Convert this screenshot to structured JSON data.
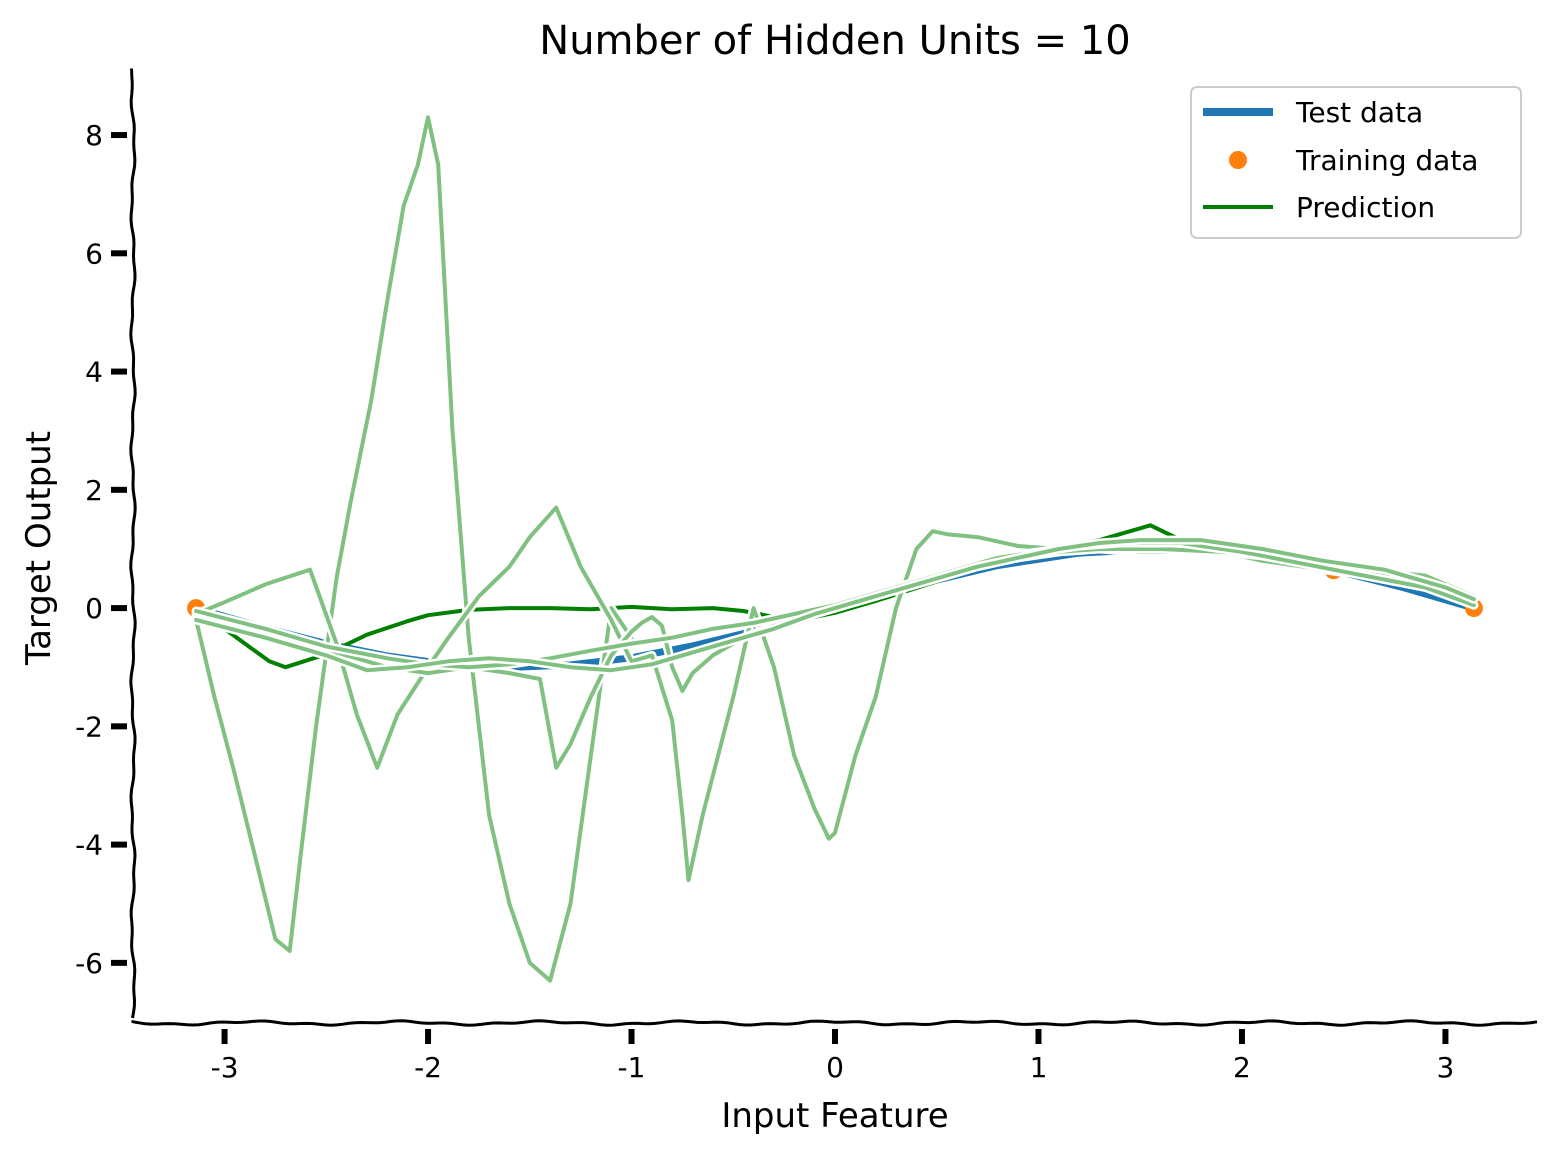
{
  "chart_data": {
    "type": "line",
    "title": "Number of Hidden Units = 10",
    "xlabel": "Input Feature",
    "ylabel": "Target Output",
    "xlim": [
      -3.45,
      3.45
    ],
    "ylim": [
      -7.0,
      9.1
    ],
    "x_ticks": [
      -3,
      -2,
      -1,
      0,
      1,
      2,
      3
    ],
    "x_tick_labels": [
      "-3",
      "-2",
      "-1",
      "0",
      "1",
      "2",
      "3"
    ],
    "y_ticks": [
      -6,
      -4,
      -2,
      0,
      2,
      4,
      6,
      8
    ],
    "y_tick_labels": [
      "-6",
      "-4",
      "-2",
      "0",
      "2",
      "4",
      "6",
      "8"
    ],
    "grid": false,
    "legend_position": "top-right",
    "colors": {
      "test": "#1f77b4",
      "training": "#ff7f0e",
      "prediction": "#008000",
      "samples": "#80c080"
    },
    "legend": [
      {
        "label": "Test data",
        "kind": "thick-line",
        "color": "#1f77b4"
      },
      {
        "label": "Training data",
        "kind": "marker",
        "color": "#ff7f0e"
      },
      {
        "label": "Prediction",
        "kind": "line",
        "color": "#008000"
      }
    ],
    "test_data": {
      "x": [
        -3.14,
        -2.8,
        -2.5,
        -2.2,
        -1.9,
        -1.57,
        -1.3,
        -1.0,
        -0.7,
        -0.4,
        0.0,
        0.4,
        0.8,
        1.2,
        1.57,
        1.9,
        2.2,
        2.5,
        2.8,
        3.14
      ],
      "y": [
        0.0,
        -0.34,
        -0.6,
        -0.81,
        -0.95,
        -1.0,
        -0.96,
        -0.84,
        -0.64,
        -0.39,
        0.0,
        0.39,
        0.72,
        0.93,
        1.0,
        0.95,
        0.81,
        0.6,
        0.34,
        0.0
      ]
    },
    "training_data": {
      "x": [
        -3.14,
        2.45,
        3.14
      ],
      "y": [
        0.0,
        0.64,
        0.0
      ]
    },
    "prediction": {
      "x": [
        -3.14,
        -2.9,
        -2.78,
        -2.7,
        -2.5,
        -2.3,
        -2.1,
        -2.0,
        -1.8,
        -1.6,
        -1.4,
        -1.2,
        -1.0,
        -0.8,
        -0.6,
        -0.45,
        -0.3,
        -0.2,
        0.0,
        0.2,
        0.5,
        0.8,
        1.0,
        1.3,
        1.55,
        1.7,
        2.0,
        2.3,
        2.6,
        2.9,
        3.14
      ],
      "y": [
        0.0,
        -0.6,
        -0.9,
        -1.0,
        -0.78,
        -0.45,
        -0.22,
        -0.12,
        -0.03,
        0.0,
        0.0,
        -0.02,
        0.02,
        -0.02,
        0.0,
        -0.05,
        -0.15,
        -0.22,
        -0.08,
        0.12,
        0.45,
        0.8,
        0.95,
        1.15,
        1.4,
        1.15,
        0.9,
        0.75,
        0.6,
        0.52,
        0.2
      ]
    },
    "sample_predictions": [
      {
        "x": [
          -3.14,
          -3.05,
          -2.95,
          -2.85,
          -2.75,
          -2.68,
          -2.62,
          -2.55,
          -2.45,
          -2.38,
          -2.28,
          -2.2,
          -2.12,
          -2.05,
          -2.0,
          -1.95,
          -1.88,
          -1.8,
          -1.7,
          -1.6,
          -1.5,
          -1.4,
          -1.3,
          -1.2,
          -1.1,
          -1.0
        ],
        "y": [
          -0.2,
          -1.5,
          -2.8,
          -4.2,
          -5.6,
          -5.8,
          -4.0,
          -2.0,
          0.5,
          1.8,
          3.5,
          5.2,
          6.8,
          7.5,
          8.3,
          7.5,
          3.0,
          -0.5,
          -3.5,
          -5.0,
          -6.0,
          -6.3,
          -5.0,
          -2.5,
          0.0,
          -0.5
        ]
      },
      {
        "x": [
          -3.14,
          -3.0,
          -2.8,
          -2.58,
          -2.45,
          -2.35,
          -2.25,
          -2.15,
          -2.0,
          -1.9,
          -1.75,
          -1.6,
          -1.5,
          -1.37,
          -1.25,
          -1.1,
          -1.0,
          -0.9,
          -0.8,
          -0.75,
          -0.72,
          -0.65,
          -0.5,
          -0.4,
          -0.3,
          -0.2,
          -0.1,
          -0.03,
          0.0,
          0.1,
          0.2,
          0.3,
          0.4,
          0.48,
          0.55,
          0.7,
          0.9,
          1.1,
          1.3,
          1.5,
          1.7,
          1.9,
          2.1,
          2.3,
          2.5,
          2.7,
          2.9,
          3.14
        ],
        "y": [
          -0.1,
          0.1,
          0.4,
          0.65,
          -0.6,
          -1.8,
          -2.7,
          -1.8,
          -1.0,
          -0.5,
          0.2,
          0.7,
          1.2,
          1.7,
          0.7,
          -0.2,
          -0.9,
          -0.8,
          -1.9,
          -3.5,
          -4.6,
          -3.5,
          -1.5,
          0.0,
          -1.0,
          -2.5,
          -3.4,
          -3.9,
          -3.8,
          -2.5,
          -1.5,
          0.0,
          1.0,
          1.3,
          1.25,
          1.2,
          1.05,
          1.0,
          1.0,
          0.95,
          0.95,
          0.95,
          0.8,
          0.7,
          0.6,
          0.62,
          0.55,
          0.2
        ]
      },
      {
        "x": [
          -3.14,
          -3.0,
          -2.7,
          -2.4,
          -2.2,
          -2.0,
          -1.8,
          -1.6,
          -1.45,
          -1.37,
          -1.3,
          -1.2,
          -1.1,
          -1.0,
          -0.95,
          -0.9,
          -0.85,
          -0.8,
          -0.75,
          -0.7,
          -0.6,
          -0.45,
          -0.3,
          -0.1,
          0.1,
          0.3,
          0.45,
          0.55,
          0.7,
          0.9,
          1.1,
          1.3,
          1.6,
          1.9,
          2.2,
          2.5,
          2.8,
          3.0,
          3.14
        ],
        "y": [
          -0.2,
          -0.3,
          -0.5,
          -0.8,
          -1.0,
          -1.1,
          -1.0,
          -1.1,
          -1.2,
          -2.7,
          -2.3,
          -1.5,
          -0.8,
          -0.4,
          -0.25,
          -0.15,
          -0.3,
          -1.0,
          -1.4,
          -1.1,
          -0.8,
          -0.5,
          -0.3,
          -0.1,
          0.1,
          0.3,
          0.5,
          0.6,
          0.75,
          0.85,
          0.95,
          1.0,
          1.0,
          0.95,
          0.85,
          0.65,
          0.5,
          0.35,
          0.05
        ]
      },
      {
        "x": [
          -3.14,
          -2.8,
          -2.5,
          -2.2,
          -2.0,
          -1.8,
          -1.6,
          -1.4,
          -1.2,
          -1.0,
          -0.8,
          -0.6,
          -0.4,
          -0.2,
          0.0,
          0.2,
          0.4,
          0.6,
          0.8,
          1.0,
          1.2,
          1.4,
          1.7,
          2.0,
          2.3,
          2.6,
          2.9,
          3.14
        ],
        "y": [
          -0.05,
          -0.35,
          -0.65,
          -0.85,
          -0.95,
          -1.0,
          -0.95,
          -0.85,
          -0.72,
          -0.6,
          -0.5,
          -0.35,
          -0.25,
          -0.1,
          0.05,
          0.25,
          0.45,
          0.65,
          0.85,
          0.95,
          1.05,
          1.1,
          1.1,
          0.95,
          0.75,
          0.55,
          0.35,
          0.05
        ]
      },
      {
        "x": [
          -3.14,
          -2.8,
          -2.5,
          -2.3,
          -2.1,
          -1.9,
          -1.7,
          -1.5,
          -1.3,
          -1.1,
          -0.9,
          -0.7,
          -0.5,
          -0.3,
          -0.1,
          0.1,
          0.3,
          0.5,
          0.7,
          0.9,
          1.1,
          1.3,
          1.5,
          1.8,
          2.1,
          2.4,
          2.7,
          3.0,
          3.14
        ],
        "y": [
          -0.2,
          -0.5,
          -0.8,
          -1.05,
          -1.0,
          -0.9,
          -0.85,
          -0.9,
          -1.0,
          -1.05,
          -0.95,
          -0.75,
          -0.55,
          -0.35,
          -0.1,
          0.1,
          0.3,
          0.5,
          0.7,
          0.85,
          1.0,
          1.1,
          1.15,
          1.15,
          1.0,
          0.8,
          0.65,
          0.35,
          0.15
        ]
      }
    ]
  }
}
